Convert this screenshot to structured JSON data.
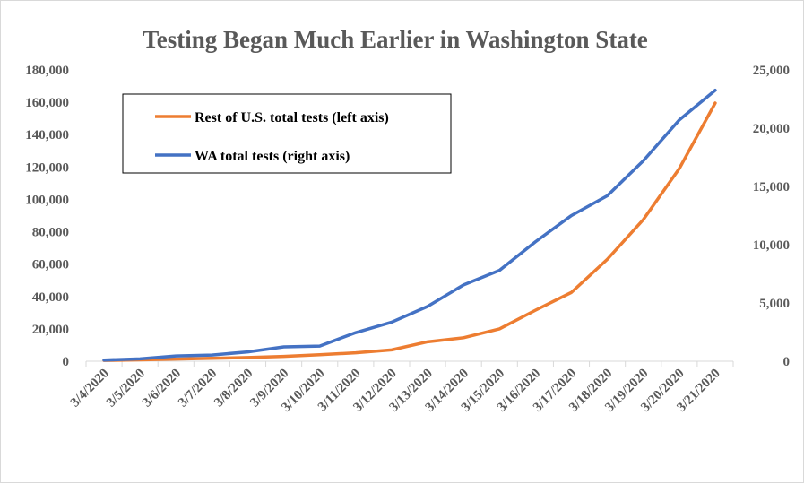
{
  "chart_data": {
    "type": "line",
    "title": "Testing Began Much Earlier in Washington State",
    "categories": [
      "3/4/2020",
      "3/5/2020",
      "3/6/2020",
      "3/7/2020",
      "3/8/2020",
      "3/9/2020",
      "3/10/2020",
      "3/11/2020",
      "3/12/2020",
      "3/13/2020",
      "3/14/2020",
      "3/15/2020",
      "3/16/2020",
      "3/17/2020",
      "3/18/2020",
      "3/19/2020",
      "3/20/2020",
      "3/21/2020"
    ],
    "y_left": {
      "ylim": [
        0,
        180000
      ],
      "ticks": [
        0,
        20000,
        40000,
        60000,
        80000,
        100000,
        120000,
        140000,
        160000,
        180000
      ],
      "tick_labels": [
        "0",
        "20,000",
        "40,000",
        "60,000",
        "80,000",
        "100,000",
        "120,000",
        "140,000",
        "160,000",
        "180,000"
      ]
    },
    "y_right": {
      "ylim": [
        0,
        25000
      ],
      "ticks": [
        0,
        5000,
        10000,
        15000,
        20000,
        25000
      ],
      "tick_labels": [
        "0",
        "5,000",
        "10,000",
        "15,000",
        "20,000",
        "25,000"
      ]
    },
    "series": [
      {
        "name": "Rest of U.S. total tests (left axis)",
        "axis": "left",
        "color": "#ED7D31",
        "values": [
          500,
          800,
          1300,
          1800,
          2300,
          3000,
          4000,
          5200,
          7000,
          12000,
          14500,
          20000,
          31500,
          42500,
          63000,
          87500,
          119000,
          159500
        ]
      },
      {
        "name": "WA total tests (right axis)",
        "axis": "right",
        "color": "#4472C4",
        "values": [
          100,
          200,
          450,
          530,
          800,
          1230,
          1300,
          2450,
          3350,
          4700,
          6550,
          7800,
          10250,
          12500,
          14200,
          17200,
          20700,
          23250
        ]
      }
    ],
    "legend": "top-left",
    "grid": false
  }
}
